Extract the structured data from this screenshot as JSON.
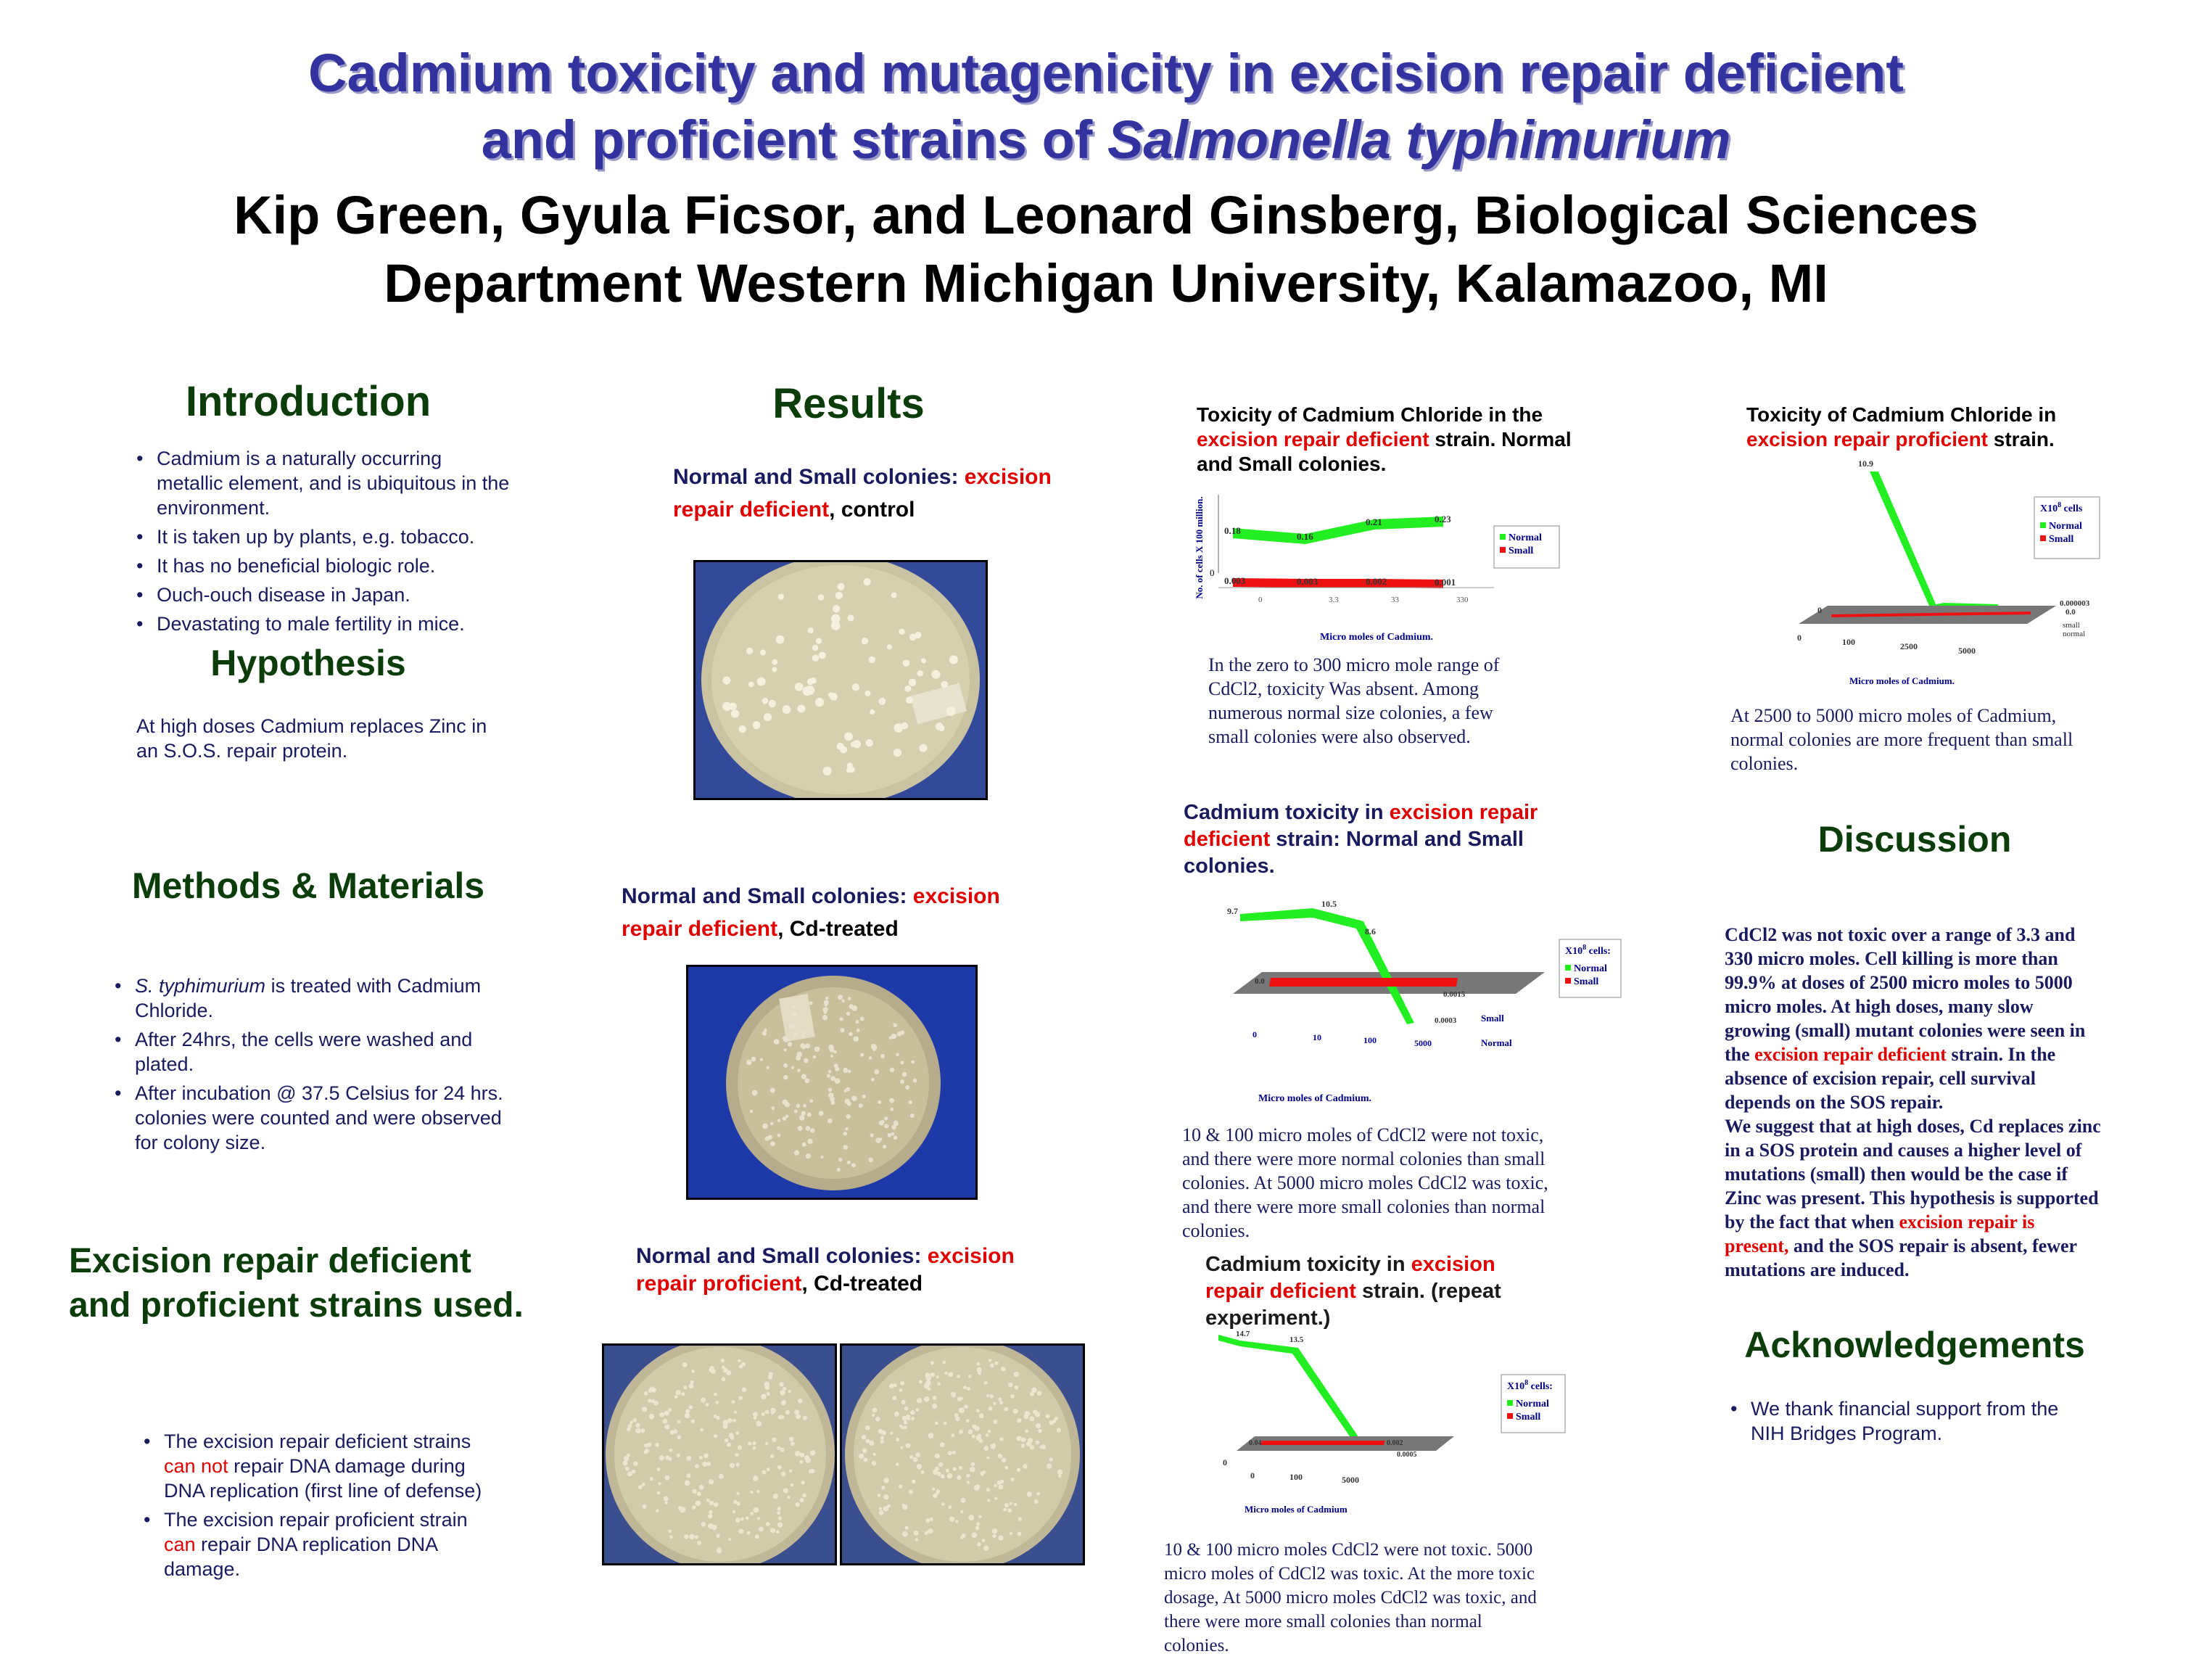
{
  "title": {
    "line1": "Cadmium toxicity and mutagenicity in excision repair deficient",
    "line2_pre": "and proficient strains of ",
    "line2_italic": "Salmonella typhimurium"
  },
  "authors": {
    "line1": "Kip Green, Gyula Ficsor, and Leonard Ginsberg, Biological Sciences",
    "line2": "Department Western Michigan University, Kalamazoo, MI"
  },
  "introduction": {
    "heading": "Introduction",
    "items": [
      "Cadmium is a naturally occurring metallic element, and is ubiquitous in the environment.",
      "It is taken up by plants, e.g. tobacco.",
      "It has no beneficial biologic role.",
      "Ouch-ouch disease in Japan.",
      "Devastating to male fertility in mice."
    ]
  },
  "hypothesis": {
    "heading": "Hypothesis",
    "text": "At high doses Cadmium replaces Zinc in an S.O.S. repair protein."
  },
  "methods": {
    "heading": "Methods & Materials",
    "item1_italic": "S. typhimurium",
    "item1_rest": " is treated with Cadmium Chloride.",
    "item2": "After 24hrs, the cells were washed and plated.",
    "item3": "After incubation @ 37.5 Celsius for 24 hrs. colonies were counted and were observed for colony size."
  },
  "strains": {
    "heading": "Excision repair deficient and proficient strains used.",
    "item1_a": "The excision repair deficient strains ",
    "item1_red": "can not",
    "item1_b": "  repair DNA damage during DNA replication  (first line of defense)",
    "item2_a": "The excision repair proficient strain ",
    "item2_red": "can",
    "item2_b": " repair DNA replication DNA damage."
  },
  "results": {
    "heading": "Results",
    "cap1_a": "Normal and Small colonies: ",
    "cap1_red": "excision repair deficient",
    "cap1_b": ", control",
    "cap2_a": "Normal and Small colonies: ",
    "cap2_red": "excision repair deficient",
    "cap2_b": ", Cd-treated",
    "cap3_a": "Normal and Small colonies: ",
    "cap3_red": "excision repair proficient",
    "cap3_b": ", Cd-treated"
  },
  "chart1_title": {
    "a": "Toxicity of Cadmium Chloride in the ",
    "red": "excision repair deficient",
    "b": " strain. Normal and Small colonies."
  },
  "chart1_caption": "In the zero to 300 micro mole range of CdCl2, toxicity Was absent. Among numerous normal size colonies, a few small colonies were also observed.",
  "chart2_title": {
    "a": "Toxicity of Cadmium Chloride in ",
    "red": "excision repair proficient",
    "b": " strain."
  },
  "chart2_caption": "At 2500 to 5000 micro moles of Cadmium, normal colonies are more frequent than small colonies.",
  "chart3_title": {
    "a": "Cadmium toxicity in ",
    "red": "excision repair deficient",
    "b": " strain: Normal and Small colonies."
  },
  "chart3_caption": "10 & 100 micro moles of CdCl2 were not toxic, and there were more normal colonies than small colonies. At 5000 micro moles CdCl2 was toxic, and there were more small colonies than normal colonies.",
  "chart4_title": {
    "a": "Cadmium toxicity in ",
    "red": "excision repair deficient",
    "b": " strain. (repeat experiment.)"
  },
  "chart4_caption": "10 & 100 micro moles CdCl2 were not toxic. 5000 micro moles of CdCl2 was toxic. At the more toxic dosage, At 5000 micro moles CdCl2 was toxic, and there were more small colonies than normal colonies.",
  "discussion": {
    "heading": "Discussion",
    "p1": "CdCl2  was not toxic over a range of 3.3 and 330 micro moles. Cell killing is more than 99.9% at doses of 2500 micro moles to 5000 micro moles. At high doses, many slow growing (small) mutant colonies were seen in the ",
    "p1_red": "excision repair deficient",
    "p1_b": " strain. In the absence of excision repair, cell survival depends on the SOS repair.",
    "p2": "We suggest that at high doses, Cd replaces zinc in a SOS protein and causes a higher level of mutations (small) then would be the case if Zinc was present. This hypothesis is supported by the fact that when ",
    "p2_red": "excision repair is present,",
    "p2_b": " and the SOS repair is absent, fewer mutations are induced."
  },
  "acknowledgements": {
    "heading": "Acknowledgements",
    "text": "We thank financial support from the NIH Bridges Program."
  },
  "colors": {
    "normal": "#22ee22",
    "small": "#ee1111",
    "floor": "#777777"
  },
  "chart_data": [
    {
      "type": "line",
      "ylabel": "No. of cells X 100 million.",
      "xlabel": "Micro moles of Cadmium.",
      "categories": [
        "0",
        "3.3",
        "33",
        "330"
      ],
      "y_axis_labels": [
        "0"
      ],
      "series": [
        {
          "name": "Normal",
          "values": [
            0.18,
            0.16,
            0.21,
            0.23
          ]
        },
        {
          "name": "Small",
          "values": [
            0.003,
            0.003,
            0.002,
            0.001
          ]
        }
      ],
      "legend": "right"
    },
    {
      "type": "line",
      "xlabel": "Micro moles of Cadmium.",
      "categories": [
        "0",
        "100",
        "2500",
        "5000"
      ],
      "y_axis_labels": [
        "0"
      ],
      "legend_title": "X10",
      "legend_title_sup": "8",
      "legend_title_rest": " cells",
      "series": [
        {
          "name": "Normal",
          "values": [
            10.9,
            null,
            null,
            0.0
          ]
        },
        {
          "name": "Small",
          "values": [
            null,
            null,
            null,
            3e-06
          ]
        }
      ],
      "point_labels": [
        "10.9",
        "0.000003",
        "0.0"
      ],
      "depth_labels": [
        "small",
        "normal"
      ],
      "legend": "right"
    },
    {
      "type": "line",
      "xlabel": "Micro moles  of Cadmium.",
      "categories": [
        "0",
        "10",
        "100",
        "5000"
      ],
      "legend_title": "X10",
      "legend_title_sup": "8",
      "legend_title_rest": " cells:",
      "series": [
        {
          "name": "Normal",
          "values": [
            9.7,
            10.5,
            8.6,
            0.0003
          ]
        },
        {
          "name": "Small",
          "values": [
            0.0,
            null,
            null,
            0.0015
          ]
        }
      ],
      "depth_labels": [
        "Small",
        "Normal"
      ],
      "legend": "right"
    },
    {
      "type": "line",
      "xlabel": "Micro moles of Cadmium",
      "categories": [
        "0",
        "100",
        "5000"
      ],
      "y_axis_labels": [
        "0"
      ],
      "legend_title": "X10",
      "legend_title_sup": "8",
      "legend_title_rest": " cells:",
      "series": [
        {
          "name": "Normal",
          "values": [
            14.7,
            13.5,
            0.0005
          ]
        },
        {
          "name": "Small",
          "values": [
            0.04,
            null,
            0.002
          ]
        }
      ],
      "legend": "right"
    }
  ]
}
